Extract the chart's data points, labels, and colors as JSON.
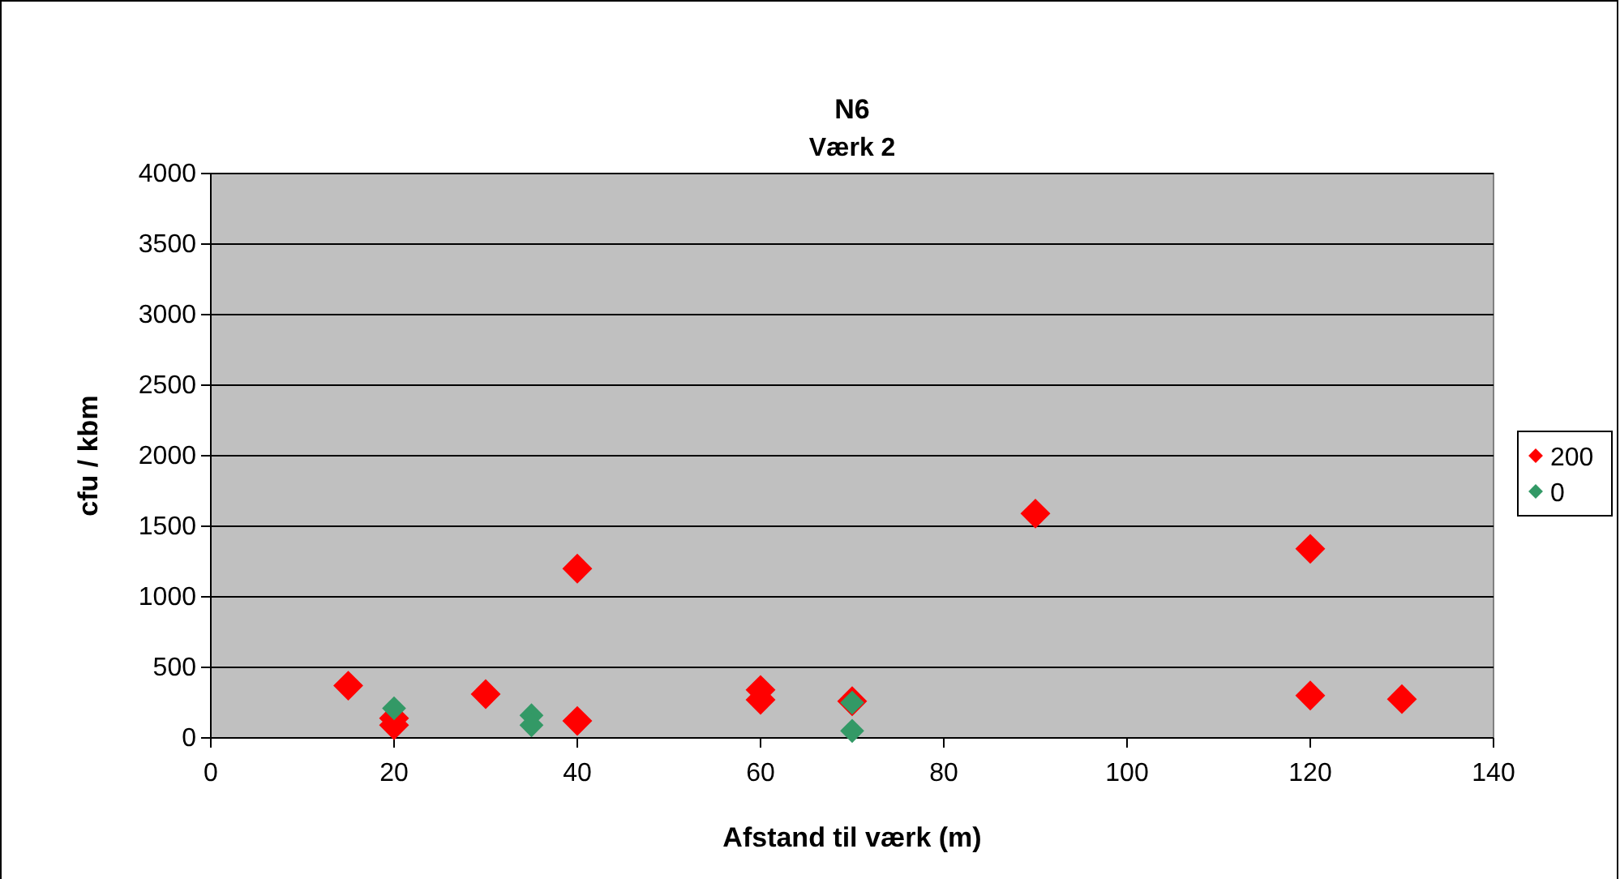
{
  "chart_data": {
    "type": "scatter",
    "title": "N6",
    "subtitle": "Værk 2",
    "xlabel": "Afstand til værk (m)",
    "ylabel": "cfu / kbm",
    "xlim": [
      0,
      140
    ],
    "xticks": [
      0,
      20,
      40,
      60,
      80,
      100,
      120,
      140
    ],
    "ylim": [
      0,
      4000
    ],
    "yticks": [
      0,
      500,
      1000,
      1500,
      2000,
      2500,
      3000,
      3500,
      4000
    ],
    "grid": "y",
    "legend": "right",
    "marker": "diamond",
    "series": [
      {
        "name": "200",
        "color": "#ff0000",
        "x": [
          15,
          20,
          20,
          30,
          40,
          40,
          60,
          60,
          70,
          90,
          120,
          120,
          130
        ],
        "values": [
          370,
          90,
          140,
          310,
          1200,
          120,
          340,
          270,
          260,
          1590,
          1340,
          300,
          275
        ]
      },
      {
        "name": "0",
        "color": "#339966",
        "x": [
          20,
          35,
          35,
          70,
          70
        ],
        "values": [
          210,
          160,
          90,
          250,
          50
        ]
      }
    ]
  }
}
